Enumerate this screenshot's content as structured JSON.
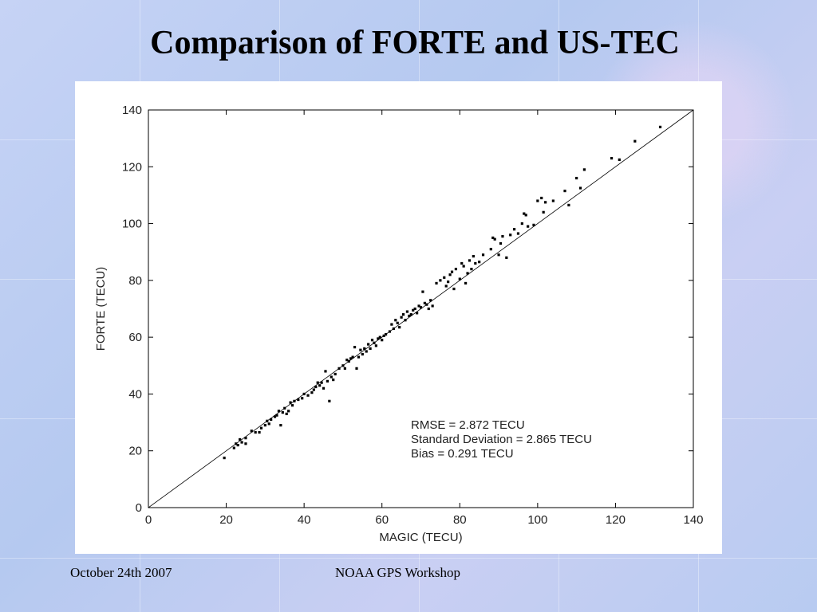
{
  "slide": {
    "title": "Comparison of FORTE and US-TEC",
    "footer_left": "October 24th 2007",
    "footer_center": "NOAA GPS Workshop"
  },
  "chart_data": {
    "type": "scatter",
    "xlabel": "MAGIC (TECU)",
    "ylabel": "FORTE (TECU)",
    "xlim": [
      0,
      140
    ],
    "ylim": [
      0,
      140
    ],
    "xticks": [
      "0",
      "20",
      "40",
      "60",
      "80",
      "100",
      "120",
      "140"
    ],
    "yticks": [
      "0",
      "20",
      "40",
      "60",
      "80",
      "100",
      "120",
      "140"
    ],
    "grid": false,
    "reference_line": [
      [
        0,
        0
      ],
      [
        140,
        140
      ]
    ],
    "annotations": [
      "RMSE = 2.872 TECU",
      "Standard Deviation = 2.865 TECU",
      "Bias = 0.291 TECU"
    ],
    "point_color": "#000000",
    "points": [
      [
        19.5,
        17.5
      ],
      [
        22,
        21
      ],
      [
        22.5,
        22.5
      ],
      [
        23,
        22
      ],
      [
        23.5,
        24
      ],
      [
        24,
        23
      ],
      [
        25,
        22.5
      ],
      [
        25,
        24.5
      ],
      [
        26.5,
        27
      ],
      [
        27.5,
        26.5
      ],
      [
        28.5,
        26.5
      ],
      [
        29,
        28
      ],
      [
        30,
        29
      ],
      [
        30.5,
        30.5
      ],
      [
        31,
        29.5
      ],
      [
        31.5,
        31
      ],
      [
        32.5,
        32
      ],
      [
        33,
        32.5
      ],
      [
        33.5,
        34
      ],
      [
        34,
        29
      ],
      [
        34.5,
        33.5
      ],
      [
        35,
        35
      ],
      [
        35.5,
        33
      ],
      [
        36,
        34
      ],
      [
        36.5,
        37
      ],
      [
        37,
        36
      ],
      [
        37.5,
        37.5
      ],
      [
        38.5,
        38
      ],
      [
        39.5,
        38.5
      ],
      [
        40,
        40
      ],
      [
        41,
        39.5
      ],
      [
        42,
        40.5
      ],
      [
        42.5,
        41.5
      ],
      [
        43,
        42.5
      ],
      [
        43.5,
        44
      ],
      [
        44,
        43
      ],
      [
        44.5,
        44
      ],
      [
        45,
        42
      ],
      [
        45.5,
        48
      ],
      [
        46,
        44.5
      ],
      [
        46.5,
        37.5
      ],
      [
        47,
        46
      ],
      [
        47.5,
        45
      ],
      [
        48,
        47
      ],
      [
        49,
        49
      ],
      [
        50,
        50
      ],
      [
        50.5,
        49
      ],
      [
        51,
        52
      ],
      [
        51.5,
        51.5
      ],
      [
        52,
        52.5
      ],
      [
        52.5,
        53
      ],
      [
        53,
        56.5
      ],
      [
        53.5,
        49
      ],
      [
        54,
        53
      ],
      [
        54.5,
        55.5
      ],
      [
        55,
        54
      ],
      [
        55.5,
        56
      ],
      [
        56,
        55
      ],
      [
        56.5,
        57.5
      ],
      [
        57,
        56
      ],
      [
        57.5,
        59
      ],
      [
        58,
        58
      ],
      [
        58.5,
        57
      ],
      [
        59,
        59.5
      ],
      [
        59.5,
        60
      ],
      [
        60,
        59
      ],
      [
        60.5,
        60.5
      ],
      [
        61,
        61
      ],
      [
        62,
        62
      ],
      [
        62.5,
        64.5
      ],
      [
        63,
        63
      ],
      [
        63.5,
        66
      ],
      [
        64,
        65
      ],
      [
        64.5,
        63.5
      ],
      [
        65,
        67
      ],
      [
        65.5,
        68
      ],
      [
        66,
        66
      ],
      [
        66.5,
        69
      ],
      [
        67,
        67.5
      ],
      [
        67.5,
        68
      ],
      [
        68,
        69.5
      ],
      [
        68.5,
        70
      ],
      [
        69,
        68.5
      ],
      [
        69.5,
        71
      ],
      [
        70,
        70.5
      ],
      [
        70.5,
        76
      ],
      [
        71,
        72
      ],
      [
        71.5,
        71.5
      ],
      [
        72,
        70
      ],
      [
        72.5,
        73
      ],
      [
        73,
        71
      ],
      [
        74,
        79
      ],
      [
        75,
        80
      ],
      [
        76,
        81
      ],
      [
        76.5,
        78
      ],
      [
        77,
        79.5
      ],
      [
        77.5,
        82
      ],
      [
        78,
        83
      ],
      [
        78.5,
        77
      ],
      [
        79,
        84
      ],
      [
        80,
        80.5
      ],
      [
        80.5,
        86
      ],
      [
        81,
        85
      ],
      [
        81.5,
        79
      ],
      [
        82,
        82.5
      ],
      [
        82.5,
        87
      ],
      [
        83,
        84
      ],
      [
        83.5,
        88.5
      ],
      [
        84,
        86
      ],
      [
        85,
        86.5
      ],
      [
        86,
        89
      ],
      [
        88,
        91
      ],
      [
        88.5,
        95
      ],
      [
        89,
        94.5
      ],
      [
        90,
        89
      ],
      [
        90.5,
        93
      ],
      [
        91,
        95.5
      ],
      [
        92,
        88
      ],
      [
        93,
        96
      ],
      [
        94,
        98
      ],
      [
        95,
        96.5
      ],
      [
        96,
        100
      ],
      [
        96.5,
        103.5
      ],
      [
        97,
        103
      ],
      [
        97.5,
        99
      ],
      [
        99,
        99.5
      ],
      [
        100,
        108
      ],
      [
        101,
        109
      ],
      [
        101.5,
        104
      ],
      [
        102,
        107.5
      ],
      [
        104,
        108
      ],
      [
        107,
        111.5
      ],
      [
        108,
        106.5
      ],
      [
        110,
        116
      ],
      [
        111,
        112.5
      ],
      [
        112,
        119
      ],
      [
        119,
        123
      ],
      [
        121,
        122.5
      ],
      [
        125,
        129
      ],
      [
        131.5,
        134
      ]
    ]
  }
}
